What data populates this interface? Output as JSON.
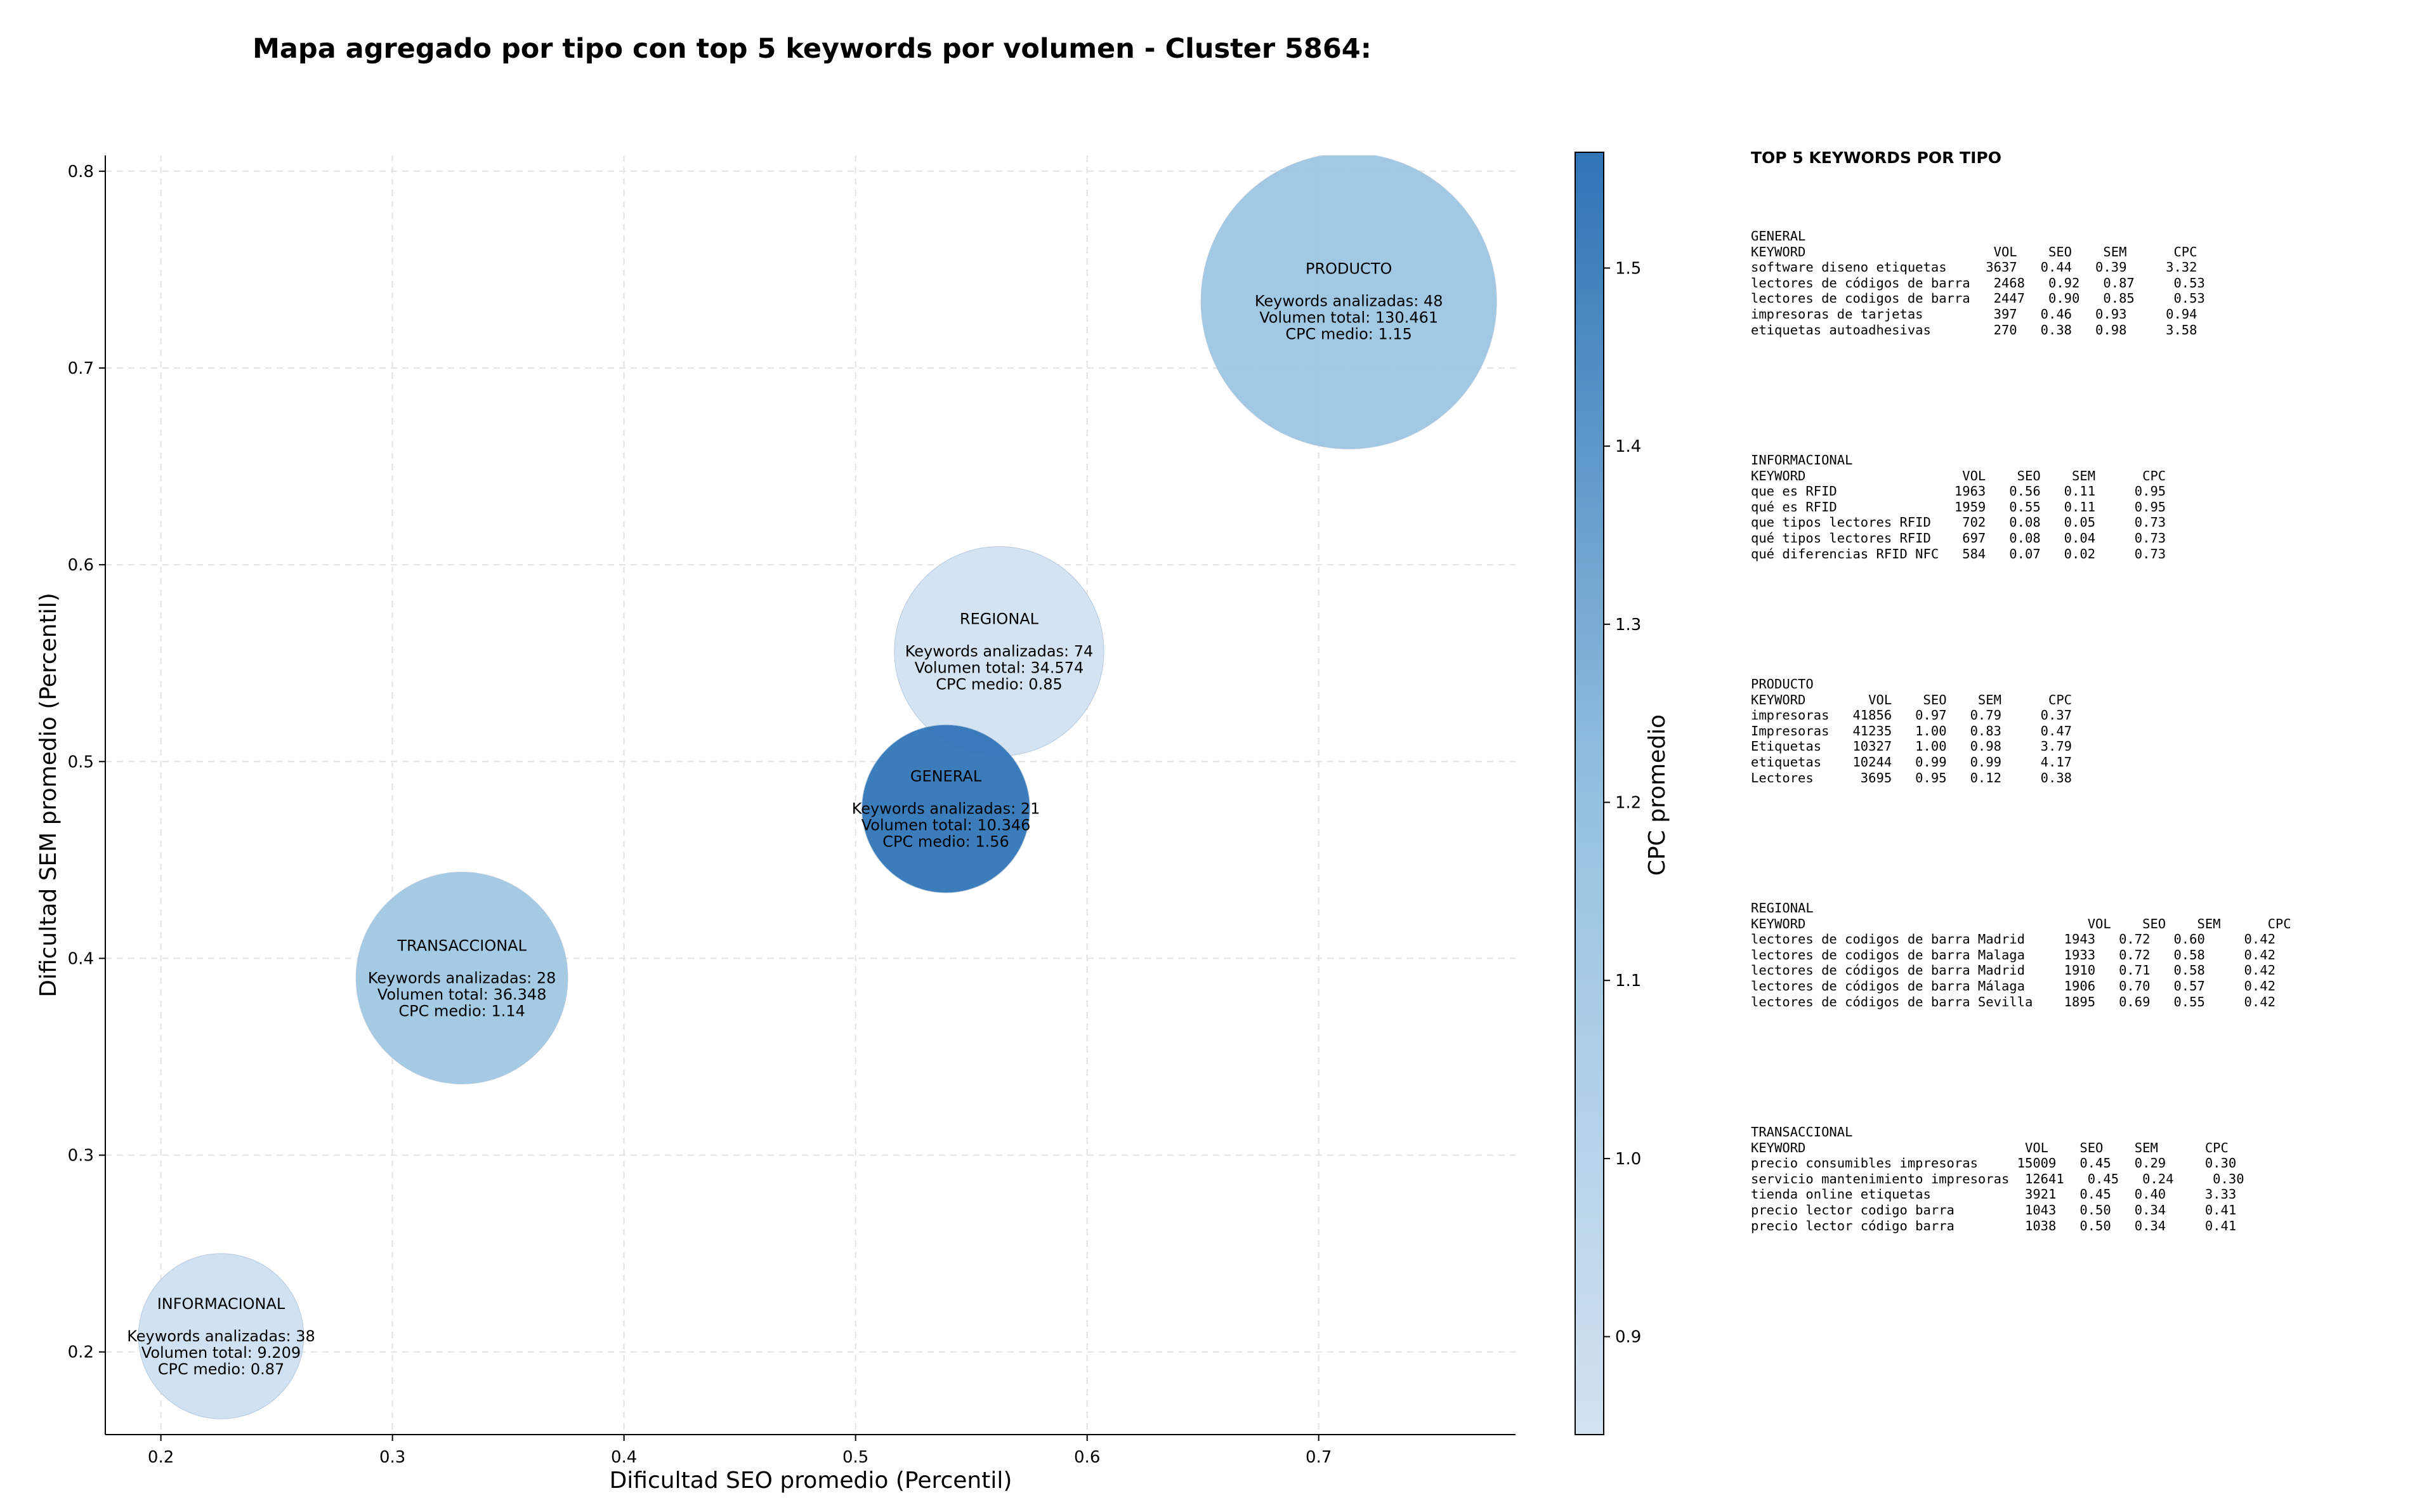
{
  "chart_data": {
    "type": "scatter",
    "title": "Mapa agregado por tipo con top 5 keywords por volumen - Cluster 5864:",
    "xlabel": "Dificultad SEO promedio (Percentil)",
    "ylabel": "Dificultad SEM promedio (Percentil)",
    "xlim": [
      0.176,
      0.785
    ],
    "ylim": [
      0.158,
      0.808
    ],
    "xticks": [
      "0.2",
      "0.3",
      "0.4",
      "0.5",
      "0.6",
      "0.7"
    ],
    "yticks": [
      "0.2",
      "0.3",
      "0.4",
      "0.5",
      "0.6",
      "0.7",
      "0.8"
    ],
    "grid": true,
    "colorbar": {
      "label": "CPC promedio",
      "min": 0.845,
      "max": 1.565,
      "ticks": [
        "0.9",
        "1.0",
        "1.1",
        "1.2",
        "1.3",
        "1.4",
        "1.5"
      ],
      "color_low": "#d2e2f1",
      "color_high": "#2f74b5"
    },
    "points": [
      {
        "name": "PRODUCTO",
        "x": 0.713,
        "y": 0.734,
        "cpc": 1.15,
        "volume": 130461,
        "line1": "Keywords analizadas: 48",
        "line2": "Volumen total: 130.461",
        "line3": "CPC medio: 1.15"
      },
      {
        "name": "REGIONAL",
        "x": 0.562,
        "y": 0.556,
        "cpc": 0.85,
        "volume": 34574,
        "line1": "Keywords analizadas: 74",
        "line2": "Volumen total: 34.574",
        "line3": "CPC medio: 0.85"
      },
      {
        "name": "GENERAL",
        "x": 0.539,
        "y": 0.476,
        "cpc": 1.56,
        "volume": 10346,
        "line1": "Keywords analizadas: 21",
        "line2": "Volumen total: 10.346",
        "line3": "CPC medio: 1.56"
      },
      {
        "name": "TRANSACCIONAL",
        "x": 0.33,
        "y": 0.39,
        "cpc": 1.14,
        "volume": 36348,
        "line1": "Keywords analizadas: 28",
        "line2": "Volumen total: 36.348",
        "line3": "CPC medio: 1.14"
      },
      {
        "name": "INFORMACIONAL",
        "x": 0.226,
        "y": 0.208,
        "cpc": 0.87,
        "volume": 9209,
        "line1": "Keywords analizadas: 38",
        "line2": "Volumen total: 9.209",
        "line3": "CPC medio: 0.87"
      }
    ]
  },
  "tables": {
    "heading": "TOP 5 KEYWORDS POR TIPO",
    "blocks": [
      {
        "lines": [
          "GENERAL",
          "KEYWORD                        VOL    SEO    SEM      CPC",
          "software diseno etiquetas     3637   0.44   0.39     3.32",
          "lectores de códigos de barra   2468   0.92   0.87     0.53",
          "lectores de codigos de barra   2447   0.90   0.85     0.53",
          "impresoras de tarjetas         397   0.46   0.93     0.94",
          "etiquetas autoadhesivas        270   0.38   0.98     3.58"
        ]
      },
      {
        "lines": [
          "INFORMACIONAL",
          "KEYWORD                    VOL    SEO    SEM      CPC",
          "que es RFID               1963   0.56   0.11     0.95",
          "qué es RFID               1959   0.55   0.11     0.95",
          "que tipos lectores RFID    702   0.08   0.05     0.73",
          "qué tipos lectores RFID    697   0.08   0.04     0.73",
          "qué diferencias RFID NFC   584   0.07   0.02     0.73"
        ]
      },
      {
        "lines": [
          "PRODUCTO",
          "KEYWORD        VOL    SEO    SEM      CPC",
          "impresoras   41856   0.97   0.79     0.37",
          "Impresoras   41235   1.00   0.83     0.47",
          "Etiquetas    10327   1.00   0.98     3.79",
          "etiquetas    10244   0.99   0.99     4.17",
          "Lectores      3695   0.95   0.12     0.38"
        ]
      },
      {
        "lines": [
          "REGIONAL",
          "KEYWORD                                    VOL    SEO    SEM      CPC",
          "lectores de codigos de barra Madrid     1943   0.72   0.60     0.42",
          "lectores de codigos de barra Malaga     1933   0.72   0.58     0.42",
          "lectores de códigos de barra Madrid     1910   0.71   0.58     0.42",
          "lectores de códigos de barra Málaga     1906   0.70   0.57     0.42",
          "lectores de códigos de barra Sevilla    1895   0.69   0.55     0.42"
        ]
      },
      {
        "lines": [
          "TRANSACCIONAL",
          "KEYWORD                            VOL    SEO    SEM      CPC",
          "precio consumibles impresoras     15009   0.45   0.29     0.30",
          "servicio mantenimiento impresoras  12641   0.45   0.24     0.30",
          "tienda online etiquetas            3921   0.45   0.40     3.33",
          "precio lector codigo barra         1043   0.50   0.34     0.41",
          "precio lector código barra         1038   0.50   0.34     0.41"
        ]
      }
    ]
  }
}
